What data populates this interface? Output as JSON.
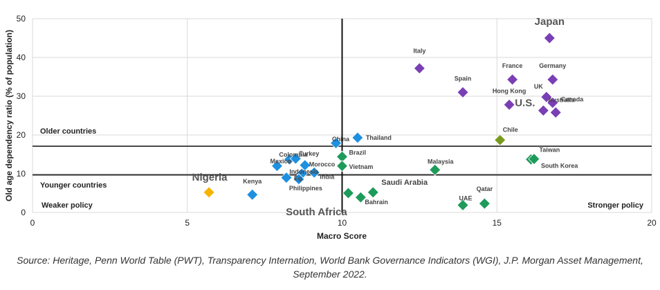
{
  "chart_data": {
    "type": "scatter",
    "xlabel": "Macro Score",
    "ylabel": "Old age dependency ratio (% of population)",
    "xlim": [
      0,
      20
    ],
    "ylim": [
      0,
      50
    ],
    "x_ticks": [
      "0",
      "5",
      "10",
      "15",
      "20"
    ],
    "y_ticks": [
      "0",
      "10",
      "20",
      "30",
      "40",
      "50"
    ],
    "grid": "vertical and horizontal, light",
    "reference_lines": {
      "vertical_x": 10,
      "upper_y": 17.1,
      "lower_y": 9.7
    },
    "region_labels": {
      "older": "Older countries",
      "younger": "Younger countries",
      "weaker": "Weaker policy",
      "stronger": "Stronger policy"
    },
    "colors": {
      "purple": "#7B3FB5",
      "blue": "#1E90E0",
      "green": "#1E9B5A",
      "olive": "#7A9A1E",
      "orange": "#F5B400"
    },
    "points": [
      {
        "name": "Japan",
        "x": 16.7,
        "y": 45.0,
        "color": "purple",
        "size": "big"
      },
      {
        "name": "Italy",
        "x": 12.5,
        "y": 37.2,
        "color": "purple"
      },
      {
        "name": "France",
        "x": 15.5,
        "y": 34.3,
        "color": "purple"
      },
      {
        "name": "Germany",
        "x": 16.8,
        "y": 34.3,
        "color": "purple"
      },
      {
        "name": "Spain",
        "x": 13.9,
        "y": 31.0,
        "color": "purple"
      },
      {
        "name": "UK",
        "x": 16.6,
        "y": 29.8,
        "color": "purple"
      },
      {
        "name": "Canada",
        "x": 16.8,
        "y": 28.3,
        "color": "purple"
      },
      {
        "name": "Hong Kong",
        "x": 15.4,
        "y": 27.8,
        "color": "purple"
      },
      {
        "name": "U.S.",
        "x": 16.5,
        "y": 26.3,
        "color": "purple",
        "size": "big"
      },
      {
        "name": "Australia",
        "x": 16.9,
        "y": 25.8,
        "color": "purple"
      },
      {
        "name": "Chile",
        "x": 15.1,
        "y": 18.7,
        "color": "olive"
      },
      {
        "name": "Thailand",
        "x": 10.5,
        "y": 19.3,
        "color": "blue"
      },
      {
        "name": "China",
        "x": 9.8,
        "y": 17.9,
        "color": "blue"
      },
      {
        "name": "Taiwan",
        "x": 16.1,
        "y": 13.7,
        "color": "green"
      },
      {
        "name": "South Korea",
        "x": 16.2,
        "y": 13.8,
        "color": "green"
      },
      {
        "name": "Brazil",
        "x": 10.0,
        "y": 14.4,
        "color": "green"
      },
      {
        "name": "Vietnam",
        "x": 10.0,
        "y": 12.0,
        "color": "green"
      },
      {
        "name": "Malaysia",
        "x": 13.0,
        "y": 11.0,
        "color": "green"
      },
      {
        "name": "Colombia",
        "x": 8.3,
        "y": 13.7,
        "color": "blue"
      },
      {
        "name": "Turkey",
        "x": 8.5,
        "y": 13.9,
        "color": "blue"
      },
      {
        "name": "Mexico",
        "x": 7.9,
        "y": 12.0,
        "color": "blue"
      },
      {
        "name": "Morocco",
        "x": 8.8,
        "y": 12.2,
        "color": "blue"
      },
      {
        "name": "Indonesia",
        "x": 8.7,
        "y": 10.0,
        "color": "blue"
      },
      {
        "name": "India",
        "x": 9.1,
        "y": 10.3,
        "color": "blue"
      },
      {
        "name": "Eg.",
        "x": 8.2,
        "y": 9.0,
        "color": "blue"
      },
      {
        "name": "Philippines",
        "x": 8.6,
        "y": 8.6,
        "color": "blue"
      },
      {
        "name": "Kenya",
        "x": 7.1,
        "y": 4.6,
        "color": "blue"
      },
      {
        "name": "Nigeria",
        "x": 5.7,
        "y": 5.2,
        "color": "orange",
        "size": "big"
      },
      {
        "name": "South Africa",
        "x": 10.2,
        "y": 5.0,
        "color": "green",
        "size": "big"
      },
      {
        "name": "Saudi Arabia",
        "x": 11.0,
        "y": 5.2,
        "color": "green",
        "size": "big"
      },
      {
        "name": "Bahrain",
        "x": 10.6,
        "y": 3.9,
        "color": "green"
      },
      {
        "name": "UAE",
        "x": 13.9,
        "y": 1.9,
        "color": "green"
      },
      {
        "name": "Qatar",
        "x": 14.6,
        "y": 2.3,
        "color": "green"
      }
    ]
  },
  "source_text": "Source: Heritage, Penn World Table (PWT), Transparency Internation, World Bank Governance Indicators (WGI), J.P. Morgan Asset Management, September 2022."
}
